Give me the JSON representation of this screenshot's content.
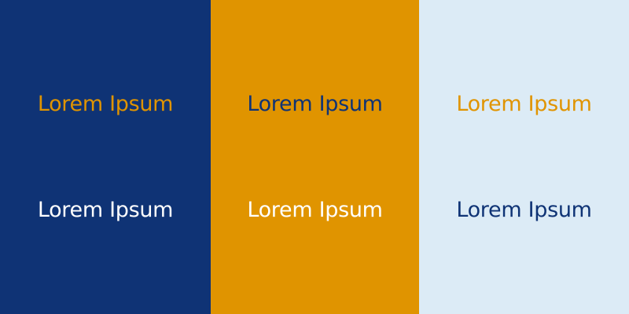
{
  "colors": {
    "navy": "#0f3375",
    "gold": "#e09400",
    "pale_blue": "#dcebf6",
    "white": "#ffffff"
  },
  "panels": [
    {
      "background": "#0f3375",
      "samples": [
        {
          "text": "Lorem Ipsum",
          "color": "#e09400"
        },
        {
          "text": "Lorem Ipsum",
          "color": "#ffffff"
        }
      ]
    },
    {
      "background": "#e09400",
      "samples": [
        {
          "text": "Lorem Ipsum",
          "color": "#0f3375"
        },
        {
          "text": "Lorem Ipsum",
          "color": "#ffffff"
        }
      ]
    },
    {
      "background": "#dcebf6",
      "samples": [
        {
          "text": "Lorem Ipsum",
          "color": "#e09400"
        },
        {
          "text": "Lorem Ipsum",
          "color": "#0f3375"
        }
      ]
    }
  ]
}
